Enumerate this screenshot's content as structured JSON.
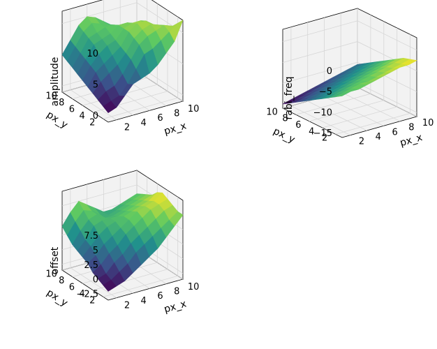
{
  "figure": {
    "palette": [
      "#440154",
      "#3b528b",
      "#21918c",
      "#5ec962",
      "#fde725"
    ]
  },
  "chart_data": [
    {
      "type": "surface",
      "zlabel": "amplitude",
      "xlabel": "px_x",
      "ylabel": "px_y",
      "xlim": [
        1,
        10
      ],
      "ylim": [
        1,
        10
      ],
      "zlim": [
        -1,
        12
      ],
      "xticks": [
        2,
        4,
        6,
        8,
        10
      ],
      "yticks": [
        2,
        4,
        6,
        8,
        10
      ],
      "zticks": [
        0,
        5,
        10
      ],
      "x": [
        1,
        2,
        3,
        4,
        5,
        6,
        7,
        8,
        9,
        10
      ],
      "y": [
        1,
        2,
        3,
        4,
        5,
        6,
        7,
        8,
        9,
        10
      ],
      "z": [
        [
          0.5,
          1.0,
          2.5,
          4.0,
          4.5,
          5.0,
          6.0,
          7.5,
          9.0,
          12.0
        ],
        [
          1.0,
          1.5,
          2.0,
          3.5,
          5.5,
          7.5,
          8.0,
          9.0,
          10.0,
          11.0
        ],
        [
          1.5,
          2.5,
          3.0,
          4.5,
          6.5,
          8.5,
          9.5,
          10.0,
          10.5,
          10.0
        ],
        [
          2.0,
          3.5,
          4.5,
          5.5,
          7.0,
          9.0,
          10.0,
          10.5,
          10.0,
          9.0
        ],
        [
          2.5,
          4.5,
          5.5,
          6.5,
          7.5,
          9.5,
          10.5,
          10.5,
          9.5,
          8.5
        ],
        [
          3.0,
          5.0,
          6.5,
          7.5,
          8.0,
          9.5,
          10.0,
          10.0,
          9.0,
          7.5
        ],
        [
          3.5,
          5.5,
          7.5,
          8.0,
          8.5,
          9.5,
          9.5,
          9.0,
          8.5,
          7.0
        ],
        [
          4.0,
          6.0,
          8.0,
          8.5,
          9.0,
          9.0,
          8.5,
          8.0,
          7.5,
          6.5
        ],
        [
          4.5,
          6.5,
          8.5,
          9.5,
          9.0,
          8.5,
          8.0,
          7.0,
          6.5,
          6.0
        ],
        [
          5.0,
          7.0,
          9.0,
          10.0,
          9.5,
          8.5,
          7.5,
          6.5,
          6.0,
          5.5
        ]
      ]
    },
    {
      "type": "surface",
      "zlabel": "rabi_freq",
      "xlabel": "px_x",
      "ylabel": "px_y",
      "xlim": [
        1,
        10
      ],
      "ylim": [
        1,
        10
      ],
      "zlim": [
        -16,
        3
      ],
      "xticks": [
        2,
        4,
        6,
        8,
        10
      ],
      "yticks": [
        2,
        4,
        6,
        8,
        10
      ],
      "zticks": [
        -15,
        -10,
        -5,
        0
      ],
      "x": [
        1,
        2,
        3,
        4,
        5,
        6,
        7,
        8,
        9,
        10
      ],
      "y": [
        1,
        2,
        3,
        4,
        5,
        6,
        7,
        8,
        9,
        10
      ],
      "z": [
        [
          -6.0,
          -5.5,
          -5.5,
          -5.0,
          -4.5,
          -4.0,
          -3.5,
          -3.0,
          -3.0,
          -2.5
        ],
        [
          -7.0,
          -6.5,
          -6.0,
          -5.5,
          -5.5,
          -5.0,
          -4.5,
          -4.0,
          -3.5,
          -3.0
        ],
        [
          -8.0,
          -7.5,
          -7.0,
          -6.5,
          -6.0,
          -5.5,
          -5.0,
          -4.5,
          -4.0,
          -3.5
        ],
        [
          -9.0,
          -8.5,
          -8.0,
          -7.5,
          -7.0,
          -6.5,
          -6.0,
          -5.5,
          -5.0,
          -4.5
        ],
        [
          -10.0,
          -9.5,
          -9.0,
          -8.5,
          -8.0,
          -7.5,
          -7.0,
          -6.5,
          -6.0,
          -5.5
        ],
        [
          -11.0,
          -10.5,
          -10.0,
          -9.5,
          -9.0,
          -8.5,
          -8.0,
          -7.5,
          -7.0,
          -6.5
        ],
        [
          -12.0,
          -11.5,
          -11.0,
          -10.5,
          -10.0,
          -9.5,
          -9.0,
          -8.5,
          -8.0,
          -7.5
        ],
        [
          -13.0,
          -12.5,
          -12.0,
          -11.5,
          -11.0,
          -10.5,
          -10.0,
          -9.5,
          -9.0,
          -8.5
        ],
        [
          -14.0,
          -13.5,
          -13.0,
          -12.5,
          -12.0,
          -11.5,
          -11.0,
          -10.5,
          -10.0,
          -9.5
        ],
        [
          -15.0,
          -14.5,
          -14.0,
          -13.5,
          -13.0,
          -12.5,
          -12.0,
          -11.5,
          -11.0,
          -10.5
        ]
      ]
    },
    {
      "type": "surface",
      "zlabel": "offset",
      "xlabel": "px_x",
      "ylabel": "px_y",
      "xlim": [
        1,
        10
      ],
      "ylim": [
        1,
        10
      ],
      "zlim": [
        -3.5,
        10
      ],
      "xticks": [
        2,
        4,
        6,
        8,
        10
      ],
      "yticks": [
        2,
        4,
        6,
        8,
        10
      ],
      "zticks": [
        -2.5,
        0.0,
        2.5,
        5.0,
        7.5
      ],
      "x": [
        1,
        2,
        3,
        4,
        5,
        6,
        7,
        8,
        9,
        10
      ],
      "y": [
        1,
        2,
        3,
        4,
        5,
        6,
        7,
        8,
        9,
        10
      ],
      "z": [
        [
          -2.0,
          -1.5,
          -1.0,
          0.0,
          1.0,
          2.0,
          3.0,
          4.5,
          6.0,
          7.5
        ],
        [
          -1.5,
          -1.0,
          0.0,
          1.0,
          2.5,
          3.5,
          4.5,
          5.5,
          6.5,
          7.5
        ],
        [
          -1.0,
          -0.5,
          1.0,
          2.0,
          3.5,
          4.5,
          5.5,
          6.5,
          7.5,
          8.0
        ],
        [
          -0.5,
          0.5,
          2.0,
          3.0,
          4.5,
          5.5,
          6.5,
          7.5,
          8.0,
          8.5
        ],
        [
          0.5,
          1.5,
          3.0,
          4.0,
          5.0,
          6.0,
          7.0,
          7.5,
          8.0,
          9.0
        ],
        [
          1.0,
          2.5,
          4.0,
          5.0,
          5.5,
          6.0,
          6.5,
          7.0,
          7.5,
          8.5
        ],
        [
          1.5,
          3.0,
          5.0,
          5.5,
          5.5,
          5.5,
          6.0,
          6.5,
          7.0,
          7.5
        ],
        [
          2.0,
          4.0,
          5.5,
          6.0,
          5.0,
          5.0,
          5.5,
          6.0,
          6.5,
          7.0
        ],
        [
          3.0,
          5.0,
          6.5,
          6.0,
          5.0,
          4.5,
          5.0,
          5.5,
          6.0,
          6.5
        ],
        [
          4.0,
          6.0,
          7.5,
          6.5,
          5.5,
          4.5,
          4.5,
          5.0,
          5.5,
          6.0
        ]
      ]
    }
  ]
}
